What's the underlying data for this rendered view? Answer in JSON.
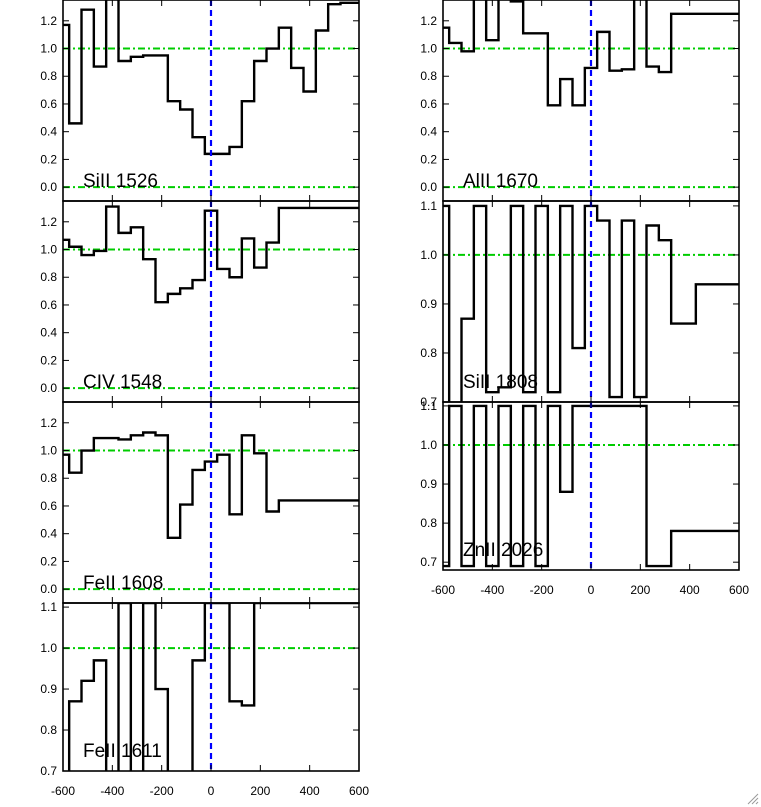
{
  "colors": {
    "spectrum": "#000000",
    "zero_velocity": "#0000ff",
    "reference_lines": "#00cc00"
  },
  "x_tick_labels": [
    "-600",
    "-400",
    "-200",
    "0",
    "200",
    "400",
    "600"
  ],
  "chart_data": [
    {
      "type": "line",
      "label": "SiII 1526",
      "x": [
        -600,
        -550,
        -500,
        -450,
        -400,
        -350,
        -300,
        -250,
        -200,
        -150,
        -100,
        -50,
        0,
        50,
        100,
        150,
        200,
        250,
        300,
        350,
        400,
        450,
        500,
        550,
        600
      ],
      "y": [
        1.17,
        0.46,
        1.28,
        0.87,
        1.4,
        0.91,
        0.94,
        0.95,
        0.95,
        0.62,
        0.56,
        0.36,
        0.24,
        0.24,
        0.29,
        0.62,
        0.91,
        1.0,
        1.15,
        0.86,
        0.69,
        1.13,
        1.32,
        1.33,
        1.33
      ],
      "xlim": [
        -600,
        600
      ],
      "ylim": [
        -0.1,
        1.35
      ],
      "yticks": [
        "0.0",
        "0.2",
        "0.4",
        "0.6",
        "0.8",
        "1.0",
        "1.2"
      ],
      "reference_y": [
        0.0,
        1.0
      ],
      "zero_velocity": 0,
      "step": true
    },
    {
      "type": "line",
      "label": "AlII 1670",
      "x": [
        -600,
        -550,
        -500,
        -450,
        -400,
        -350,
        -300,
        -250,
        -200,
        -150,
        -100,
        -50,
        0,
        50,
        100,
        150,
        200,
        250,
        300,
        350,
        400,
        450,
        500,
        550,
        600
      ],
      "y": [
        1.15,
        1.04,
        0.98,
        1.4,
        1.06,
        1.45,
        1.34,
        1.11,
        1.11,
        0.59,
        0.78,
        0.59,
        0.86,
        1.12,
        0.84,
        0.85,
        1.4,
        0.87,
        0.83,
        1.25,
        1.25,
        1.25,
        1.25,
        1.25,
        1.25
      ],
      "xlim": [
        -600,
        600
      ],
      "ylim": [
        -0.1,
        1.35
      ],
      "yticks": [
        "0.0",
        "0.2",
        "0.4",
        "0.6",
        "0.8",
        "1.0",
        "1.2"
      ],
      "reference_y": [
        0.0,
        1.0
      ],
      "zero_velocity": 0,
      "step": true
    },
    {
      "type": "line",
      "label": "CIV 1548",
      "x": [
        -600,
        -550,
        -500,
        -450,
        -400,
        -350,
        -300,
        -250,
        -200,
        -150,
        -100,
        -50,
        0,
        50,
        100,
        150,
        200,
        250,
        300,
        350,
        400,
        450,
        500,
        550,
        600
      ],
      "y": [
        1.07,
        1.02,
        0.96,
        0.99,
        1.31,
        1.12,
        1.16,
        0.93,
        0.62,
        0.68,
        0.72,
        0.78,
        1.28,
        0.86,
        0.8,
        1.08,
        0.87,
        1.05,
        1.3,
        1.3,
        1.3,
        1.3,
        1.3,
        1.3,
        1.3
      ],
      "xlim": [
        -600,
        600
      ],
      "ylim": [
        -0.1,
        1.35
      ],
      "yticks": [
        "0.0",
        "0.2",
        "0.4",
        "0.6",
        "0.8",
        "1.0",
        "1.2"
      ],
      "reference_y": [
        0.0,
        1.0
      ],
      "zero_velocity": 0,
      "step": true,
      "note": "steps are spaced 50 km/s starting at -600 (approximate reading)"
    },
    {
      "type": "line",
      "label": "SiII 1808",
      "x": [
        -600,
        -550,
        -500,
        -450,
        -400,
        -350,
        -300,
        -250,
        -200,
        -150,
        -100,
        -50,
        0,
        50,
        100,
        150,
        200,
        250,
        300,
        350,
        400,
        450,
        500,
        550,
        600
      ],
      "y": [
        1.1,
        0.6,
        0.87,
        1.1,
        0.72,
        0.73,
        1.1,
        0.72,
        1.1,
        0.72,
        1.1,
        0.81,
        1.1,
        1.07,
        0.71,
        1.07,
        0.71,
        1.06,
        1.03,
        0.86,
        0.86,
        0.94,
        0.94,
        0.94,
        0.94
      ],
      "xlim": [
        -600,
        600
      ],
      "ylim": [
        0.7,
        1.11
      ],
      "yticks": [
        "0.7",
        "0.8",
        "0.9",
        "1.0",
        "1.1"
      ],
      "reference_y": [
        1.0
      ],
      "zero_velocity": 0,
      "step": true
    },
    {
      "type": "line",
      "label": "FeII 1608",
      "x": [
        -600,
        -550,
        -500,
        -450,
        -400,
        -350,
        -300,
        -250,
        -200,
        -150,
        -100,
        -50,
        0,
        50,
        100,
        150,
        200,
        250,
        300,
        350,
        400,
        450,
        500,
        550,
        600
      ],
      "y": [
        0.97,
        0.84,
        1.0,
        1.09,
        1.09,
        1.08,
        1.11,
        1.13,
        1.11,
        0.37,
        0.61,
        0.86,
        0.92,
        0.97,
        0.54,
        1.11,
        0.98,
        0.56,
        0.64,
        0.64,
        0.64,
        0.64,
        0.64,
        0.64,
        0.64
      ],
      "xlim": [
        -600,
        600
      ],
      "ylim": [
        -0.1,
        1.35
      ],
      "yticks": [
        "0.0",
        "0.2",
        "0.4",
        "0.6",
        "0.8",
        "1.0",
        "1.2"
      ],
      "reference_y": [
        0.0,
        1.0
      ],
      "zero_velocity": 0,
      "step": true
    },
    {
      "type": "line",
      "label": "ZnII 2026",
      "x": [
        -600,
        -550,
        -500,
        -450,
        -400,
        -350,
        -300,
        -250,
        -200,
        -150,
        -100,
        -50,
        0,
        50,
        100,
        150,
        200,
        250,
        300,
        350,
        400,
        450,
        500,
        550,
        600
      ],
      "y": [
        0.69,
        1.1,
        0.69,
        1.1,
        0.69,
        1.1,
        0.69,
        1.1,
        0.69,
        1.1,
        0.88,
        1.1,
        1.1,
        1.1,
        1.1,
        1.1,
        1.1,
        0.69,
        0.69,
        0.78,
        0.78,
        0.78,
        0.78,
        0.78,
        0.78
      ],
      "xlim": [
        -600,
        600
      ],
      "ylim": [
        0.68,
        1.11
      ],
      "yticks": [
        "0.7",
        "0.8",
        "0.9",
        "1.0",
        "1.1"
      ],
      "reference_y": [
        1.0
      ],
      "zero_velocity": 0,
      "step": true
    },
    {
      "type": "line",
      "label": "FeII 1611",
      "x": [
        -600,
        -550,
        -500,
        -450,
        -400,
        -350,
        -300,
        -250,
        -200,
        -150,
        -100,
        -50,
        0,
        50,
        100,
        150,
        200,
        250,
        300,
        350,
        400,
        450,
        500,
        550,
        600
      ],
      "y": [
        0.6,
        0.87,
        0.92,
        0.97,
        0.6,
        1.11,
        0.6,
        1.11,
        0.9,
        0.6,
        0.6,
        0.97,
        1.11,
        1.11,
        0.87,
        0.86,
        1.11,
        1.11,
        1.11,
        1.11,
        1.11,
        1.11,
        1.11,
        1.11,
        1.11
      ],
      "xlim": [
        -600,
        600
      ],
      "ylim": [
        0.7,
        1.11
      ],
      "yticks": [
        "0.7",
        "0.8",
        "0.9",
        "1.0",
        "1.1"
      ],
      "reference_y": [
        1.0
      ],
      "zero_velocity": 0,
      "step": true
    }
  ]
}
